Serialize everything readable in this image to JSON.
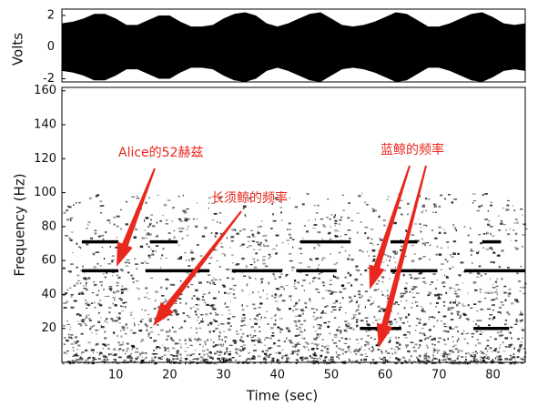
{
  "chart_data": [
    {
      "type": "waveform",
      "ylabel": "Volts",
      "x": [
        0,
        2,
        4,
        6,
        8,
        10,
        12,
        14,
        16,
        18,
        20,
        22,
        24,
        26,
        28,
        30,
        32,
        34,
        36,
        38,
        40,
        42,
        44,
        46,
        48,
        50,
        52,
        54,
        56,
        58,
        60,
        62,
        64,
        66,
        68,
        70,
        72,
        74,
        76,
        78,
        80,
        82,
        84,
        86
      ],
      "values": [
        1.5,
        1.6,
        1.8,
        2.1,
        2.1,
        1.8,
        1.4,
        1.4,
        1.7,
        2.0,
        2.0,
        1.6,
        1.3,
        1.3,
        1.4,
        1.8,
        2.1,
        2.2,
        2.0,
        1.5,
        1.3,
        1.5,
        1.8,
        2.1,
        2.2,
        1.8,
        1.4,
        1.3,
        1.4,
        1.6,
        1.9,
        2.2,
        2.1,
        1.7,
        1.3,
        1.3,
        1.5,
        1.8,
        2.1,
        2.2,
        1.9,
        1.5,
        1.4,
        1.5
      ],
      "color": "#000000",
      "xlim": [
        0,
        86
      ],
      "ylim": [
        -2.2,
        2.4
      ],
      "yticks": [
        -2,
        0,
        2
      ]
    },
    {
      "type": "spectrogram",
      "xlabel": "Time (sec)",
      "ylabel": "Frequency (Hz)",
      "xlim": [
        0,
        86
      ],
      "ylim": [
        0,
        162
      ],
      "xticks": [
        10,
        20,
        30,
        40,
        50,
        60,
        70,
        80
      ],
      "yticks": [
        20,
        40,
        60,
        80,
        100,
        120,
        140,
        160
      ],
      "color": "#000000",
      "tracks": [
        {
          "x": [
            3.7,
            10.5
          ],
          "y": 71
        },
        {
          "x": [
            16.4,
            21.5
          ],
          "y": 71
        },
        {
          "x": [
            44.3,
            53.6
          ],
          "y": 71
        },
        {
          "x": [
            61,
            66
          ],
          "y": 71
        },
        {
          "x": [
            78,
            81.5
          ],
          "y": 71
        },
        {
          "x": [
            3.7,
            10.5
          ],
          "y": 54
        },
        {
          "x": [
            15.5,
            27.4
          ],
          "y": 54
        },
        {
          "x": [
            31.6,
            40.9
          ],
          "y": 54
        },
        {
          "x": [
            43.5,
            51
          ],
          "y": 54
        },
        {
          "x": [
            61,
            69.7
          ],
          "y": 54
        },
        {
          "x": [
            74.7,
            86
          ],
          "y": 54
        },
        {
          "x": [
            55.3,
            63
          ],
          "y": 20
        },
        {
          "x": [
            76.4,
            83
          ],
          "y": 20
        }
      ],
      "annotations": [
        "Alice的52赫兹",
        "长须鲸的频率",
        "蓝鲸的频率"
      ]
    }
  ]
}
